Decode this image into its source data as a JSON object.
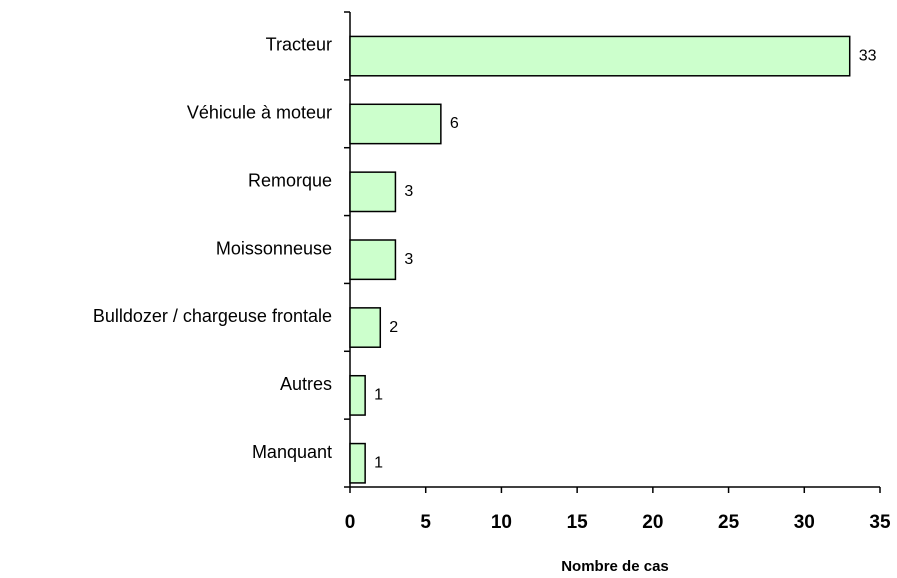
{
  "chart_data": {
    "type": "bar",
    "orientation": "horizontal",
    "categories": [
      "Tracteur",
      "Véhicule à moteur",
      "Remorque",
      "Moissonneuse",
      "Bulldozer / chargeuse frontale",
      "Autres",
      "Manquant"
    ],
    "values": [
      33,
      6,
      3,
      3,
      2,
      1,
      1
    ],
    "color": "#ccffcc",
    "xlabel": "Nombre de cas",
    "xlim": [
      0,
      35
    ],
    "xticks": [
      0,
      5,
      10,
      15,
      20,
      25,
      30,
      35
    ],
    "grid": false
  }
}
